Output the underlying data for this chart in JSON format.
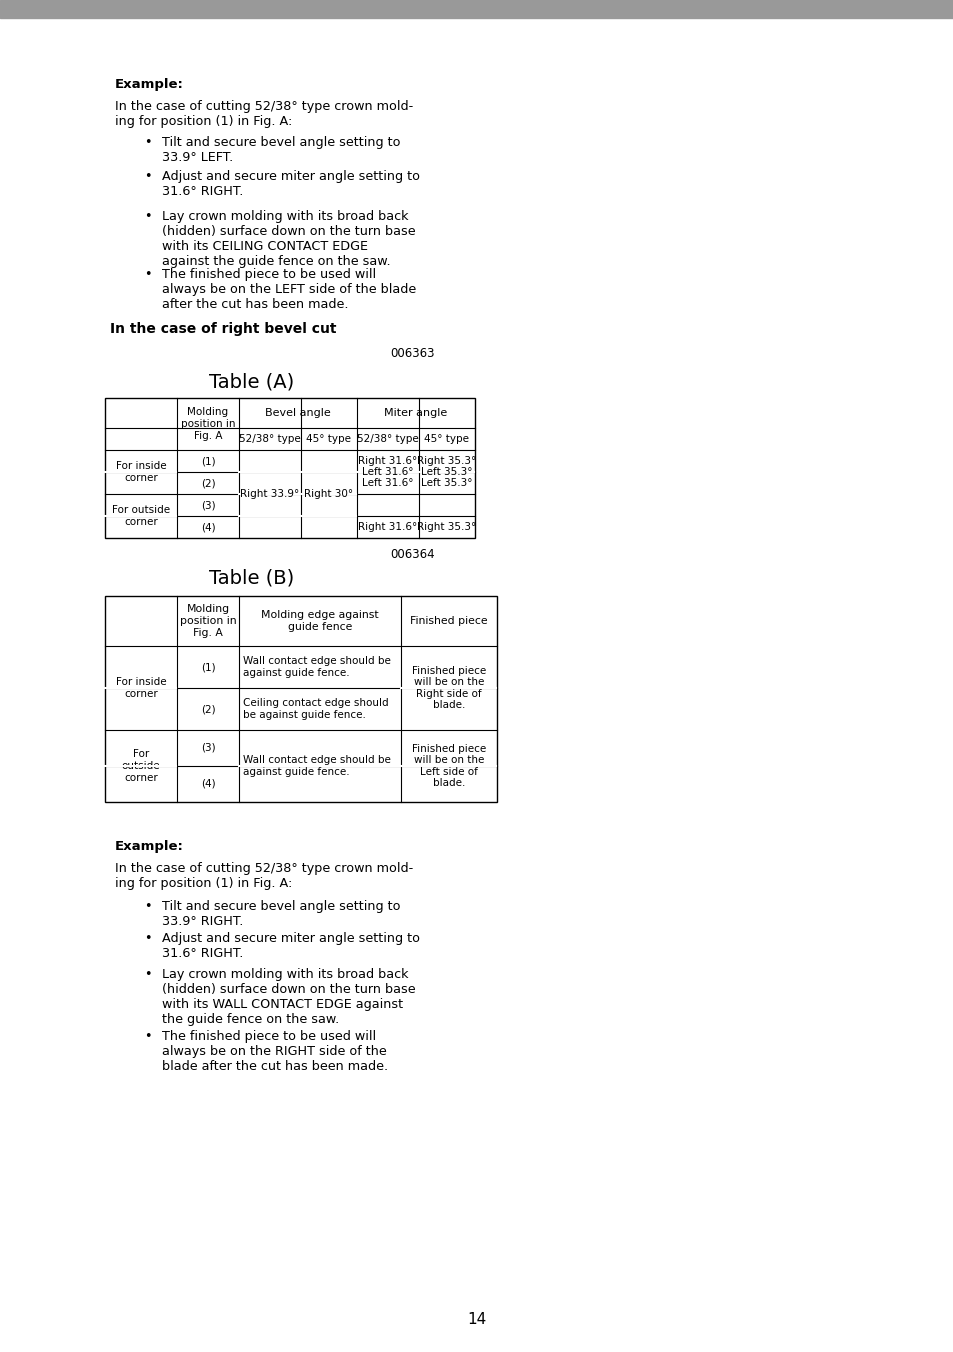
{
  "bg_color": "#ffffff",
  "page_number": "14",
  "section1": {
    "example_label": "Example:",
    "para1": "In the case of cutting 52/38° type crown mold-\ning for position (1) in Fig. A:",
    "bullets": [
      "Tilt and secure bevel angle setting to\n33.9° LEFT.",
      "Adjust and secure miter angle setting to\n31.6° RIGHT.",
      "Lay crown molding with its broad back\n(hidden) surface down on the turn base\nwith its CEILING CONTACT EDGE\nagainst the guide fence on the saw.",
      "The finished piece to be used will\nalways be on the LEFT side of the blade\nafter the cut has been made."
    ]
  },
  "section_header": "In the case of right bevel cut",
  "table_a_ref": "006363",
  "table_a_title": "Table (A)",
  "table_b_ref": "006364",
  "table_b_title": "Table (B)",
  "section2": {
    "example_label": "Example:",
    "para1": "In the case of cutting 52/38° type crown mold-\ning for position (1) in Fig. A:",
    "bullets": [
      "Tilt and secure bevel angle setting to\n33.9° RIGHT.",
      "Adjust and secure miter angle setting to\n31.6° RIGHT.",
      "Lay crown molding with its broad back\n(hidden) surface down on the turn base\nwith its WALL CONTACT EDGE against\nthe guide fence on the saw.",
      "The finished piece to be used will\nalways be on the RIGHT side of the\nblade after the cut has been made."
    ]
  }
}
